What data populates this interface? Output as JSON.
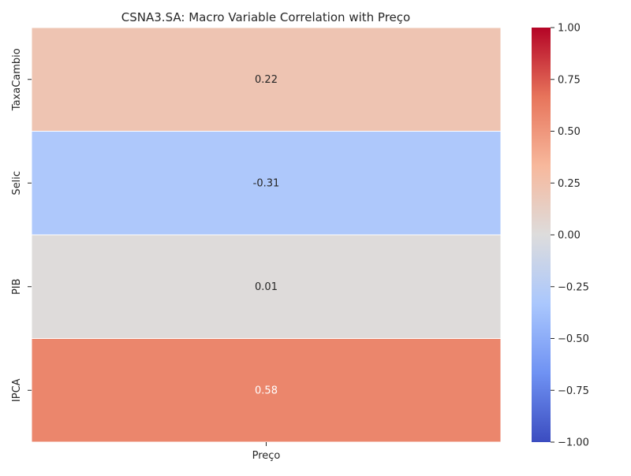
{
  "chart_data": {
    "type": "heatmap",
    "title": "CSNA3.SA: Macro Variable Correlation with Preço",
    "xlabel": "",
    "ylabel": "",
    "columns": [
      "Preço"
    ],
    "rows": [
      "TaxaCambio",
      "Selic",
      "PIB",
      "IPCA"
    ],
    "values": [
      [
        0.22
      ],
      [
        -0.31
      ],
      [
        0.01
      ],
      [
        0.58
      ]
    ],
    "annotations": [
      "0.22",
      "-0.31",
      "0.01",
      "0.58"
    ],
    "colormap": "coolwarm",
    "vmin": -1.0,
    "vmax": 1.0,
    "colorbar_ticks": [
      "1.00",
      "0.75",
      "0.50",
      "0.25",
      "0.00",
      "−0.25",
      "−0.50",
      "−0.75",
      "−1.00"
    ],
    "colorbar_tick_values": [
      1.0,
      0.75,
      0.5,
      0.25,
      0.0,
      -0.25,
      -0.5,
      -0.75,
      -1.0
    ],
    "colors": {
      "cmap_stops": [
        "#3b4cc0",
        "#6f92f3",
        "#aac7fd",
        "#dddcdc",
        "#f7b89c",
        "#e7745b",
        "#b40426"
      ]
    }
  }
}
